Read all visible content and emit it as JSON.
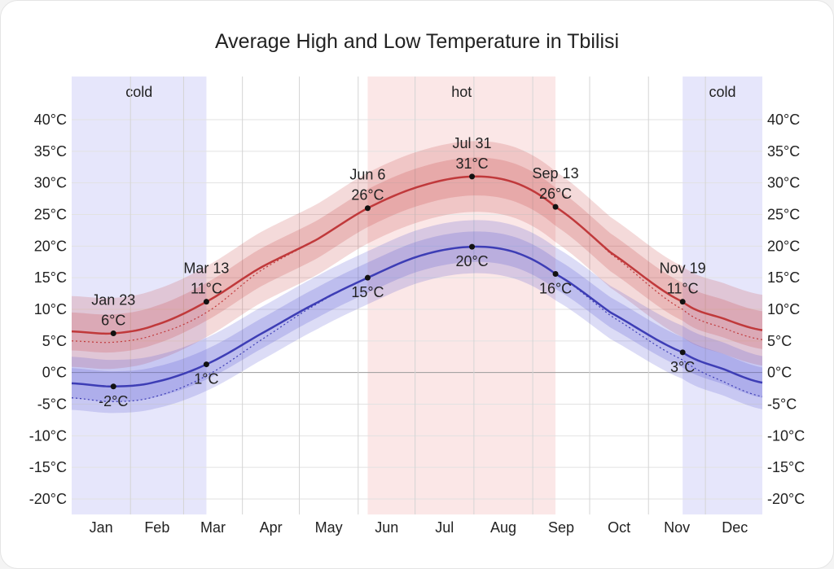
{
  "chart_data": {
    "type": "line",
    "title": "Average High and Low Temperature in Tbilisi",
    "xlabel": "",
    "ylabel": "",
    "x_unit": "day of year",
    "xlim": [
      1,
      365
    ],
    "ylim": [
      -20,
      40
    ],
    "y_ticks": [
      40,
      35,
      30,
      25,
      20,
      15,
      10,
      5,
      0,
      -5,
      -10,
      -15,
      -20
    ],
    "y_tick_format": "{v}°C",
    "x_tick_labels": [
      "Jan",
      "Feb",
      "Mar",
      "Apr",
      "May",
      "Jun",
      "Jul",
      "Aug",
      "Sep",
      "Oct",
      "Nov",
      "Dec"
    ],
    "grid": true,
    "x": [
      1,
      23,
      45,
      72,
      100,
      130,
      157,
      185,
      212,
      235,
      256,
      285,
      323,
      345,
      365
    ],
    "series": [
      {
        "key": "high",
        "color": "#c0393b",
        "values": [
          6.5,
          6.2,
          7.5,
          11.2,
          16.5,
          21,
          26,
          29.5,
          31,
          30,
          26.2,
          19,
          11.2,
          8.5,
          6.7
        ],
        "perceived": [
          5,
          4.8,
          6,
          9.5,
          16,
          21,
          26,
          29.5,
          31,
          30,
          26.2,
          18.8,
          10,
          7,
          5.2
        ],
        "band_inner": 3,
        "band_outer": 5.6
      },
      {
        "key": "low",
        "color": "#3d3db5",
        "values": [
          -1.7,
          -2.2,
          -1.5,
          1.3,
          6,
          11,
          15,
          18.5,
          19.9,
          19,
          15.6,
          9.5,
          3.2,
          0.5,
          -1.6
        ],
        "perceived": [
          -4,
          -4.6,
          -3.8,
          -0.5,
          5,
          10.8,
          15,
          18.5,
          19.9,
          19,
          15.6,
          9,
          2,
          -1.5,
          -3.8
        ],
        "band_inner": 2.4,
        "band_outer": 4.2
      }
    ],
    "seasons": [
      {
        "label": "cold",
        "start": 1,
        "end": 72,
        "color": "#e6e6fb"
      },
      {
        "label": "hot",
        "start": 157,
        "end": 256,
        "color": "#fbe7e7"
      },
      {
        "label": "cold",
        "start": 323,
        "end": 365,
        "color": "#e6e6fb"
      }
    ],
    "annotations": [
      {
        "series": "high",
        "day": 23,
        "date": "Jan 23",
        "temp": "6°C"
      },
      {
        "series": "low",
        "day": 23,
        "temp": "-2°C"
      },
      {
        "series": "high",
        "day": 72,
        "date": "Mar 13",
        "temp": "11°C"
      },
      {
        "series": "low",
        "day": 72,
        "temp": "1°C"
      },
      {
        "series": "high",
        "day": 157,
        "date": "Jun 6",
        "temp": "26°C"
      },
      {
        "series": "low",
        "day": 157,
        "temp": "15°C"
      },
      {
        "series": "high",
        "day": 212,
        "date": "Jul 31",
        "temp": "31°C"
      },
      {
        "series": "low",
        "day": 212,
        "temp": "20°C"
      },
      {
        "series": "high",
        "day": 256,
        "date": "Sep 13",
        "temp": "26°C"
      },
      {
        "series": "low",
        "day": 256,
        "temp": "16°C"
      },
      {
        "series": "high",
        "day": 323,
        "date": "Nov 19",
        "temp": "11°C"
      },
      {
        "series": "low",
        "day": 323,
        "temp": "3°C"
      }
    ]
  }
}
